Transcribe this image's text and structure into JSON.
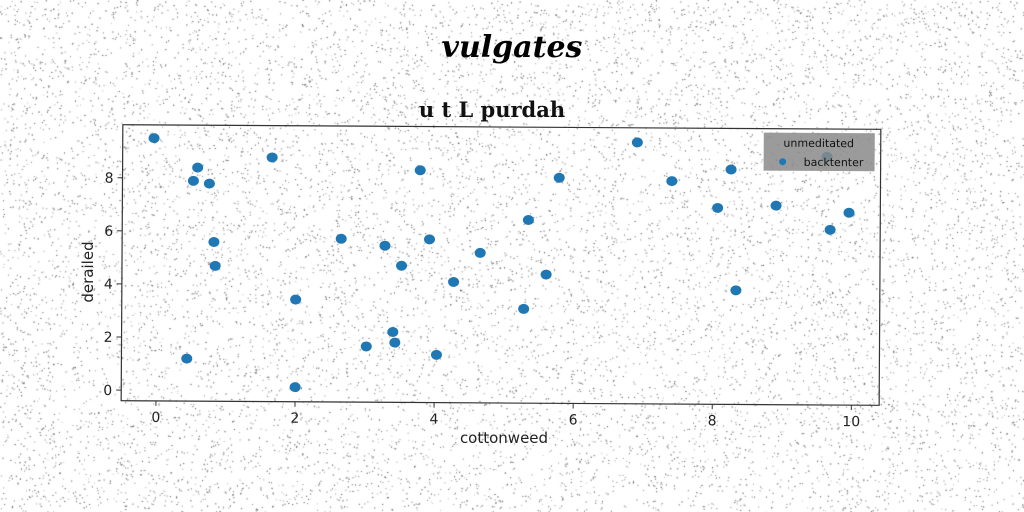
{
  "figure_title": "vulgates",
  "chart_data": {
    "type": "scatter",
    "title": "u t L purdah",
    "xlabel": "cottonweed",
    "ylabel": "derailed",
    "xlim": [
      -0.5,
      10.4
    ],
    "ylim": [
      -0.4,
      10.0
    ],
    "xticks": [
      0,
      2,
      4,
      6,
      8,
      10
    ],
    "yticks": [
      0,
      2,
      4,
      6,
      8
    ],
    "grid": false,
    "legend": {
      "title": "unmeditated",
      "placement": "top-right"
    },
    "series": [
      {
        "name": "backtenter",
        "color": "#1f77b4",
        "x": [
          -0.05,
          0.52,
          0.58,
          0.75,
          0.82,
          0.84,
          0.44,
          1.65,
          2.0,
          2.0,
          2.65,
          3.02,
          3.28,
          3.4,
          3.43,
          3.52,
          3.78,
          3.92,
          4.03,
          4.27,
          4.65,
          5.28,
          5.34,
          5.6,
          5.78,
          6.9,
          7.4,
          8.06,
          8.25,
          8.33,
          8.9,
          9.63,
          9.68,
          9.95
        ],
        "y": [
          9.5,
          7.9,
          8.4,
          7.8,
          5.6,
          4.7,
          1.2,
          8.8,
          3.45,
          0.15,
          5.75,
          1.7,
          5.5,
          2.25,
          1.85,
          4.75,
          8.35,
          5.75,
          1.4,
          4.15,
          5.25,
          3.15,
          6.5,
          4.45,
          8.1,
          9.45,
          8.0,
          7.0,
          8.45,
          3.9,
          7.1,
          8.95,
          6.2,
          6.85
        ]
      }
    ]
  }
}
